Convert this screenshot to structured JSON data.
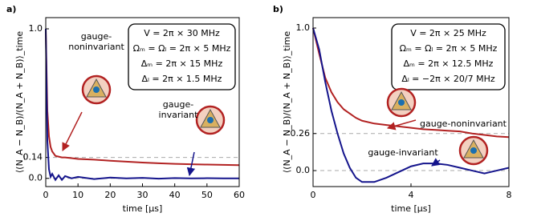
{
  "chart_data": [
    {
      "type": "line",
      "panel_label": "a)",
      "xlabel": "time [μs]",
      "ylabel": "⟨(N_A − N_B)/(N_A + N_B)⟩_time",
      "x": [
        0,
        0.5,
        1,
        1.5,
        2,
        3,
        4,
        5,
        6,
        8,
        10,
        15,
        20,
        25,
        30,
        35,
        40,
        45,
        50,
        55,
        60
      ],
      "series": [
        {
          "name": "gauge-noninvariant",
          "color": "#b22222",
          "values": [
            1.0,
            0.45,
            0.28,
            0.21,
            0.18,
            0.15,
            0.145,
            0.14,
            0.14,
            0.135,
            0.13,
            0.125,
            0.118,
            0.112,
            0.106,
            0.101,
            0.097,
            0.094,
            0.092,
            0.09,
            0.088
          ]
        },
        {
          "name": "gauge-invariant",
          "color": "#14148c",
          "values": [
            1.0,
            0.25,
            0.06,
            0.01,
            0.03,
            -0.01,
            0.02,
            -0.01,
            0.015,
            0.0,
            0.01,
            -0.005,
            0.005,
            0.0,
            0.003,
            -0.002,
            0.002,
            0.0,
            0.001,
            0.0,
            0.0
          ]
        }
      ],
      "annotations": [
        [
          "gauge-",
          "noninvariant"
        ],
        [
          "gauge-",
          "invariant"
        ]
      ],
      "params": [
        "V = 2π × 30 MHz",
        "Ωₘ = Ωₗ = 2π × 5 MHz",
        "Δₘ = 2π × 15 MHz",
        "Δₗ = 2π × 1.5 MHz"
      ],
      "xlim": [
        0,
        60
      ],
      "xticks": [
        0,
        10,
        20,
        30,
        40,
        50,
        60
      ],
      "ylim": [
        -0.055,
        1.075
      ],
      "yticks": [
        {
          "value": 0,
          "label": "0.0"
        },
        0.14,
        {
          "value": 1,
          "label": "1.0"
        }
      ],
      "hlines": [
        0.14,
        0
      ]
    },
    {
      "type": "line",
      "panel_label": "b)",
      "xlabel": "time [μs]",
      "ylabel": "⟨(N_A − N_B)/(N_A + N_B)⟩_time",
      "x": [
        0,
        0.25,
        0.5,
        0.75,
        1,
        1.25,
        1.5,
        1.75,
        2,
        2.5,
        3,
        3.5,
        4,
        4.5,
        5,
        5.5,
        6,
        6.5,
        7,
        7.5,
        8
      ],
      "series": [
        {
          "name": "gauge-noninvariant",
          "color": "#b22222",
          "values": [
            1.0,
            0.82,
            0.65,
            0.55,
            0.48,
            0.43,
            0.4,
            0.37,
            0.35,
            0.33,
            0.32,
            0.31,
            0.3,
            0.29,
            0.285,
            0.28,
            0.275,
            0.26,
            0.25,
            0.24,
            0.235
          ]
        },
        {
          "name": "gauge-invariant",
          "color": "#14148c",
          "values": [
            1.0,
            0.85,
            0.62,
            0.42,
            0.26,
            0.12,
            0.02,
            -0.05,
            -0.08,
            -0.08,
            -0.05,
            -0.01,
            0.03,
            0.05,
            0.05,
            0.04,
            0.02,
            0.0,
            -0.02,
            0.0,
            0.02
          ]
        }
      ],
      "annotations": [
        [
          "gauge-noninvariant"
        ],
        [
          "gauge-invariant"
        ]
      ],
      "params": [
        "V = 2π × 25 MHz",
        "Ωₘ = Ωₗ = 2π × 5 MHz",
        "Δₘ = 2π × 12.5 MHz",
        "Δₗ = −2π × 20/7 MHz"
      ],
      "xlim": [
        0,
        8
      ],
      "xticks": [
        0,
        4,
        8
      ],
      "ylim": [
        -0.112,
        1.073
      ],
      "yticks": [
        {
          "value": 0,
          "label": "0.0"
        },
        0.26,
        {
          "value": 1,
          "label": "1.0"
        }
      ],
      "hlines": [
        0.26,
        0
      ]
    }
  ]
}
